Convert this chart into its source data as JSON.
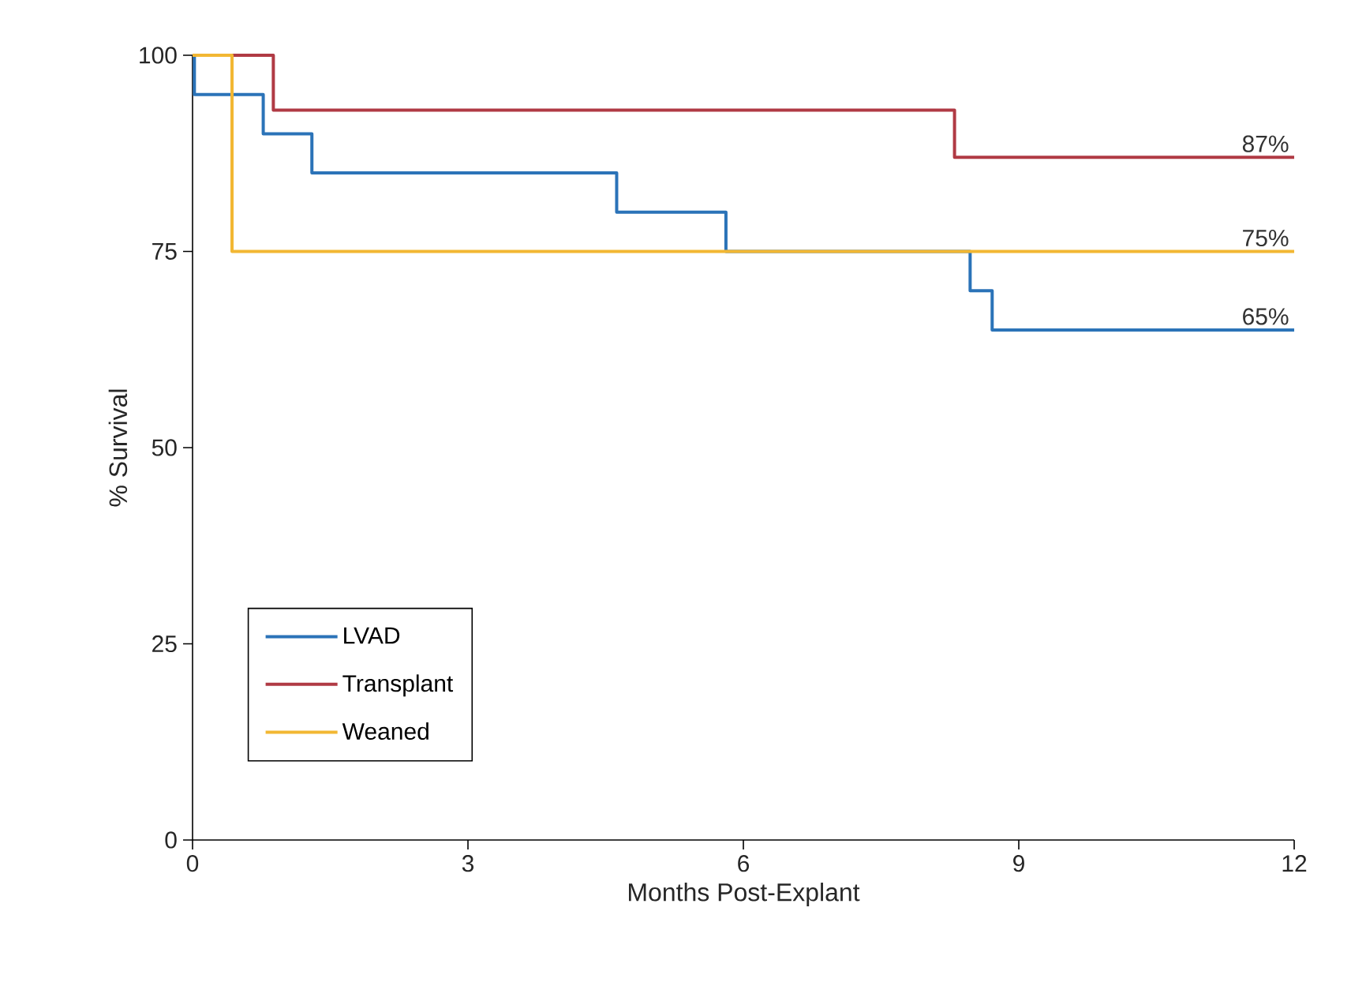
{
  "chart_data": {
    "type": "step",
    "xlabel": "Months Post-Explant",
    "ylabel": "% Survival",
    "xlim": [
      0,
      12
    ],
    "ylim": [
      0,
      100
    ],
    "xticks": [
      0,
      3,
      6,
      9,
      12
    ],
    "yticks": [
      0,
      25,
      50,
      75,
      100
    ],
    "grid": false,
    "legend": "bottom left",
    "marker": "none",
    "line_style": "solid",
    "series": [
      {
        "name": "LVAD",
        "color": "#2b73b8",
        "x": [
          0,
          0.02,
          0.77,
          1.3,
          4.62,
          5.81,
          8.47,
          8.71,
          12
        ],
        "values": [
          100,
          95,
          90,
          85,
          80,
          75,
          70,
          65,
          65
        ]
      },
      {
        "name": "Transplant",
        "color": "#b03a44",
        "x": [
          0,
          0.88,
          8.3,
          12
        ],
        "values": [
          100,
          93,
          87,
          87
        ]
      },
      {
        "name": "Weaned",
        "color": "#f2b733",
        "x": [
          0,
          0.43,
          12
        ],
        "values": [
          100,
          75,
          75
        ]
      }
    ],
    "annotations": [
      {
        "text": "87%",
        "y": 87
      },
      {
        "text": "75%",
        "y": 75
      },
      {
        "text": "65%",
        "y": 65
      }
    ]
  }
}
